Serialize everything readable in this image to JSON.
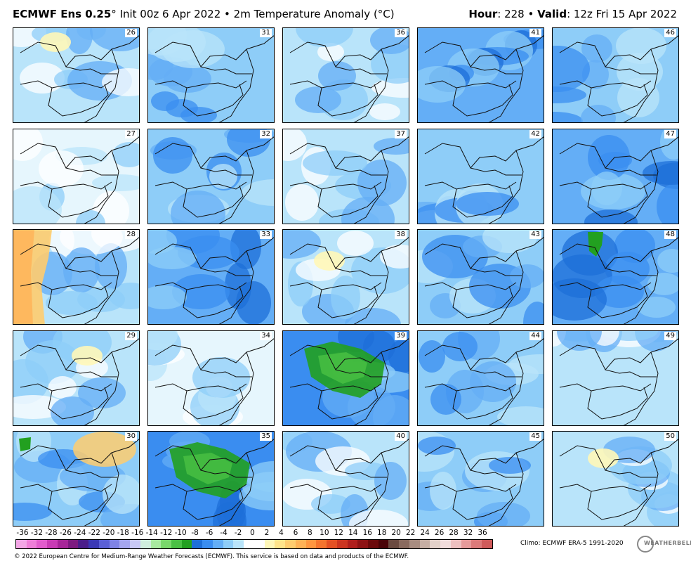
{
  "header": {
    "model": "ECMWF Ens 0.25",
    "deg": "°",
    "init": "Init 00z 6 Apr 2022",
    "bullet": "•",
    "field": "2m Temperature Anomaly (",
    "unit": "°C)",
    "hour_label": "Hour",
    "hour_value": ": 228",
    "valid_label": "Valid",
    "valid_value": ": 12z Fri 15 Apr 2022"
  },
  "panels": [
    {
      "member": "26",
      "tint": "light"
    },
    {
      "member": "31",
      "tint": "mid"
    },
    {
      "member": "36",
      "tint": "light"
    },
    {
      "member": "41",
      "tint": "dark"
    },
    {
      "member": "46",
      "tint": "mid"
    },
    {
      "member": "27",
      "tint": "white"
    },
    {
      "member": "32",
      "tint": "mid"
    },
    {
      "member": "37",
      "tint": "light"
    },
    {
      "member": "42",
      "tint": "mid"
    },
    {
      "member": "47",
      "tint": "dark"
    },
    {
      "member": "28",
      "tint": "warm"
    },
    {
      "member": "33",
      "tint": "dark"
    },
    {
      "member": "38",
      "tint": "light"
    },
    {
      "member": "43",
      "tint": "mid"
    },
    {
      "member": "48",
      "tint": "dark"
    },
    {
      "member": "29",
      "tint": "light"
    },
    {
      "member": "34",
      "tint": "white"
    },
    {
      "member": "39",
      "tint": "green"
    },
    {
      "member": "44",
      "tint": "mid"
    },
    {
      "member": "49",
      "tint": "light"
    },
    {
      "member": "30",
      "tint": "mid"
    },
    {
      "member": "35",
      "tint": "green"
    },
    {
      "member": "40",
      "tint": "light"
    },
    {
      "member": "45",
      "tint": "mid"
    },
    {
      "member": "50",
      "tint": "light"
    }
  ],
  "colorbar": {
    "labels": [
      "-36",
      "-32",
      "-28",
      "-26",
      "-24",
      "-22",
      "-20",
      "-18",
      "-16",
      "-14",
      "-12",
      "-10",
      "-8",
      "-6",
      "-4",
      "-2",
      "0",
      "2",
      "4",
      "6",
      "8",
      "10",
      "12",
      "14",
      "16",
      "18",
      "20",
      "22",
      "24",
      "26",
      "28",
      "32",
      "36"
    ],
    "colors": [
      "#f4a6e6",
      "#ef7ed8",
      "#e25ccc",
      "#c93bb4",
      "#a72598",
      "#7d1a80",
      "#4b1d8a",
      "#3b38b6",
      "#5a5fd6",
      "#7f83e6",
      "#a5a6ef",
      "#c8c8f6",
      "#cfeedd",
      "#a8eaa0",
      "#79d86b",
      "#4ac044",
      "#22a020",
      "#1e6fd8",
      "#3a8df0",
      "#64aef6",
      "#8ecdf8",
      "#b9e4fa",
      "#ffffff",
      "#ffffff",
      "#fff7b8",
      "#ffe48a",
      "#ffcc6e",
      "#ffb256",
      "#ff9640",
      "#f5742e",
      "#e45024",
      "#cc3420",
      "#b01e1c",
      "#8e1214",
      "#6c0a0c",
      "#4a0408",
      "#6b4a40",
      "#8a6a5e",
      "#a88c80",
      "#c6aea3",
      "#e2d0c8",
      "#f2dcdc",
      "#eec0c0",
      "#e69a9a",
      "#dc7a7a",
      "#d05a5a"
    ]
  },
  "footer": {
    "climo": "Climo: ECMWF ERA-5 1991-2020",
    "copyright": "© 2022 European Centre for Medium-Range Weather Forecasts (ECMWF). This service is based on data and products of the ECMWF.",
    "logo": "WEATHERBELL"
  }
}
